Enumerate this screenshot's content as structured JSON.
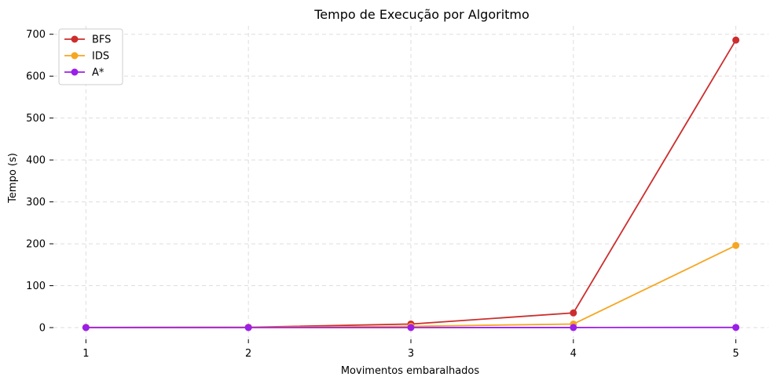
{
  "chart_data": {
    "type": "line",
    "title": "Tempo de Execução por Algoritmo",
    "xlabel": "Movimentos embaralhados",
    "ylabel": "Tempo (s)",
    "x": [
      1,
      2,
      3,
      4,
      5
    ],
    "xticks": [
      "1",
      "2",
      "3",
      "4",
      "5"
    ],
    "yticks": [
      "0",
      "100",
      "200",
      "300",
      "400",
      "500",
      "600",
      "700"
    ],
    "xlim": [
      0.8,
      5.2
    ],
    "ylim": [
      -28,
      720
    ],
    "grid": true,
    "legend_position": "top-left",
    "series": [
      {
        "name": "BFS",
        "color": "#cc2e2e",
        "values": [
          0.5,
          0.8,
          8.5,
          35,
          686
        ]
      },
      {
        "name": "IDS",
        "color": "#f5a623",
        "values": [
          0.3,
          0.5,
          3,
          8.5,
          196
        ]
      },
      {
        "name": "A*",
        "color": "#9b1fe8",
        "values": [
          0.1,
          0.1,
          0.1,
          0.2,
          0.4
        ]
      }
    ]
  }
}
